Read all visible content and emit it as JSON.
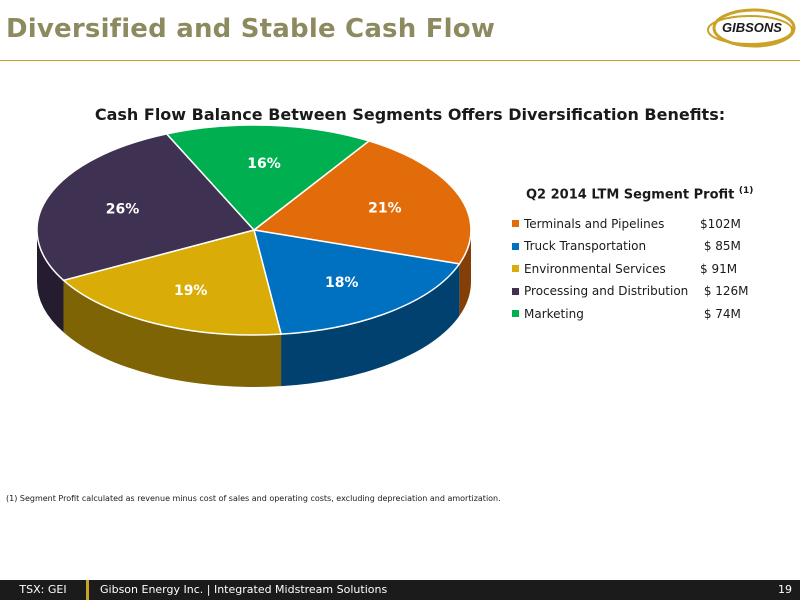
{
  "header": {
    "title": "Diversified and Stable Cash Flow",
    "logo_text": "GIBSONS"
  },
  "colors": {
    "title": "#8d8a60",
    "accent": "#c9a227",
    "footer_bg": "#1b1b1b"
  },
  "chart_data": {
    "type": "pie",
    "title": "Cash Flow Balance Between Segments Offers Diversification Benefits:",
    "legend_title": "Q2 2014 LTM Segment Profit",
    "legend_title_note": "(1)",
    "legend_position": "right",
    "slices": [
      {
        "name": "Terminals and Pipelines",
        "value_label": "$102M",
        "value": 102,
        "percent_label": "21%",
        "color": "#e36c0a"
      },
      {
        "name": "Truck Transportation",
        "value_label": " $ 85M",
        "value": 85,
        "percent_label": "18%",
        "color": "#0070c0"
      },
      {
        "name": "Environmental Services",
        "value_label": "$ 91M",
        "value": 91,
        "percent_label": "19%",
        "color": "#d9ac07"
      },
      {
        "name": "Processing and Distribution",
        "value_label": " $ 126M",
        "value": 126,
        "percent_label": "26%",
        "color": "#3f3151"
      },
      {
        "name": "Marketing",
        "value_label": " $ 74M",
        "value": 74,
        "percent_label": "16%",
        "color": "#00b050"
      }
    ]
  },
  "footnote": "(1)  Segment Profit calculated as revenue minus cost of sales and operating costs, excluding depreciation and amortization.",
  "footer": {
    "ticker": "TSX: GEI",
    "company": "Gibson Energy Inc.   |   Integrated Midstream Solutions",
    "page_number": "19"
  }
}
